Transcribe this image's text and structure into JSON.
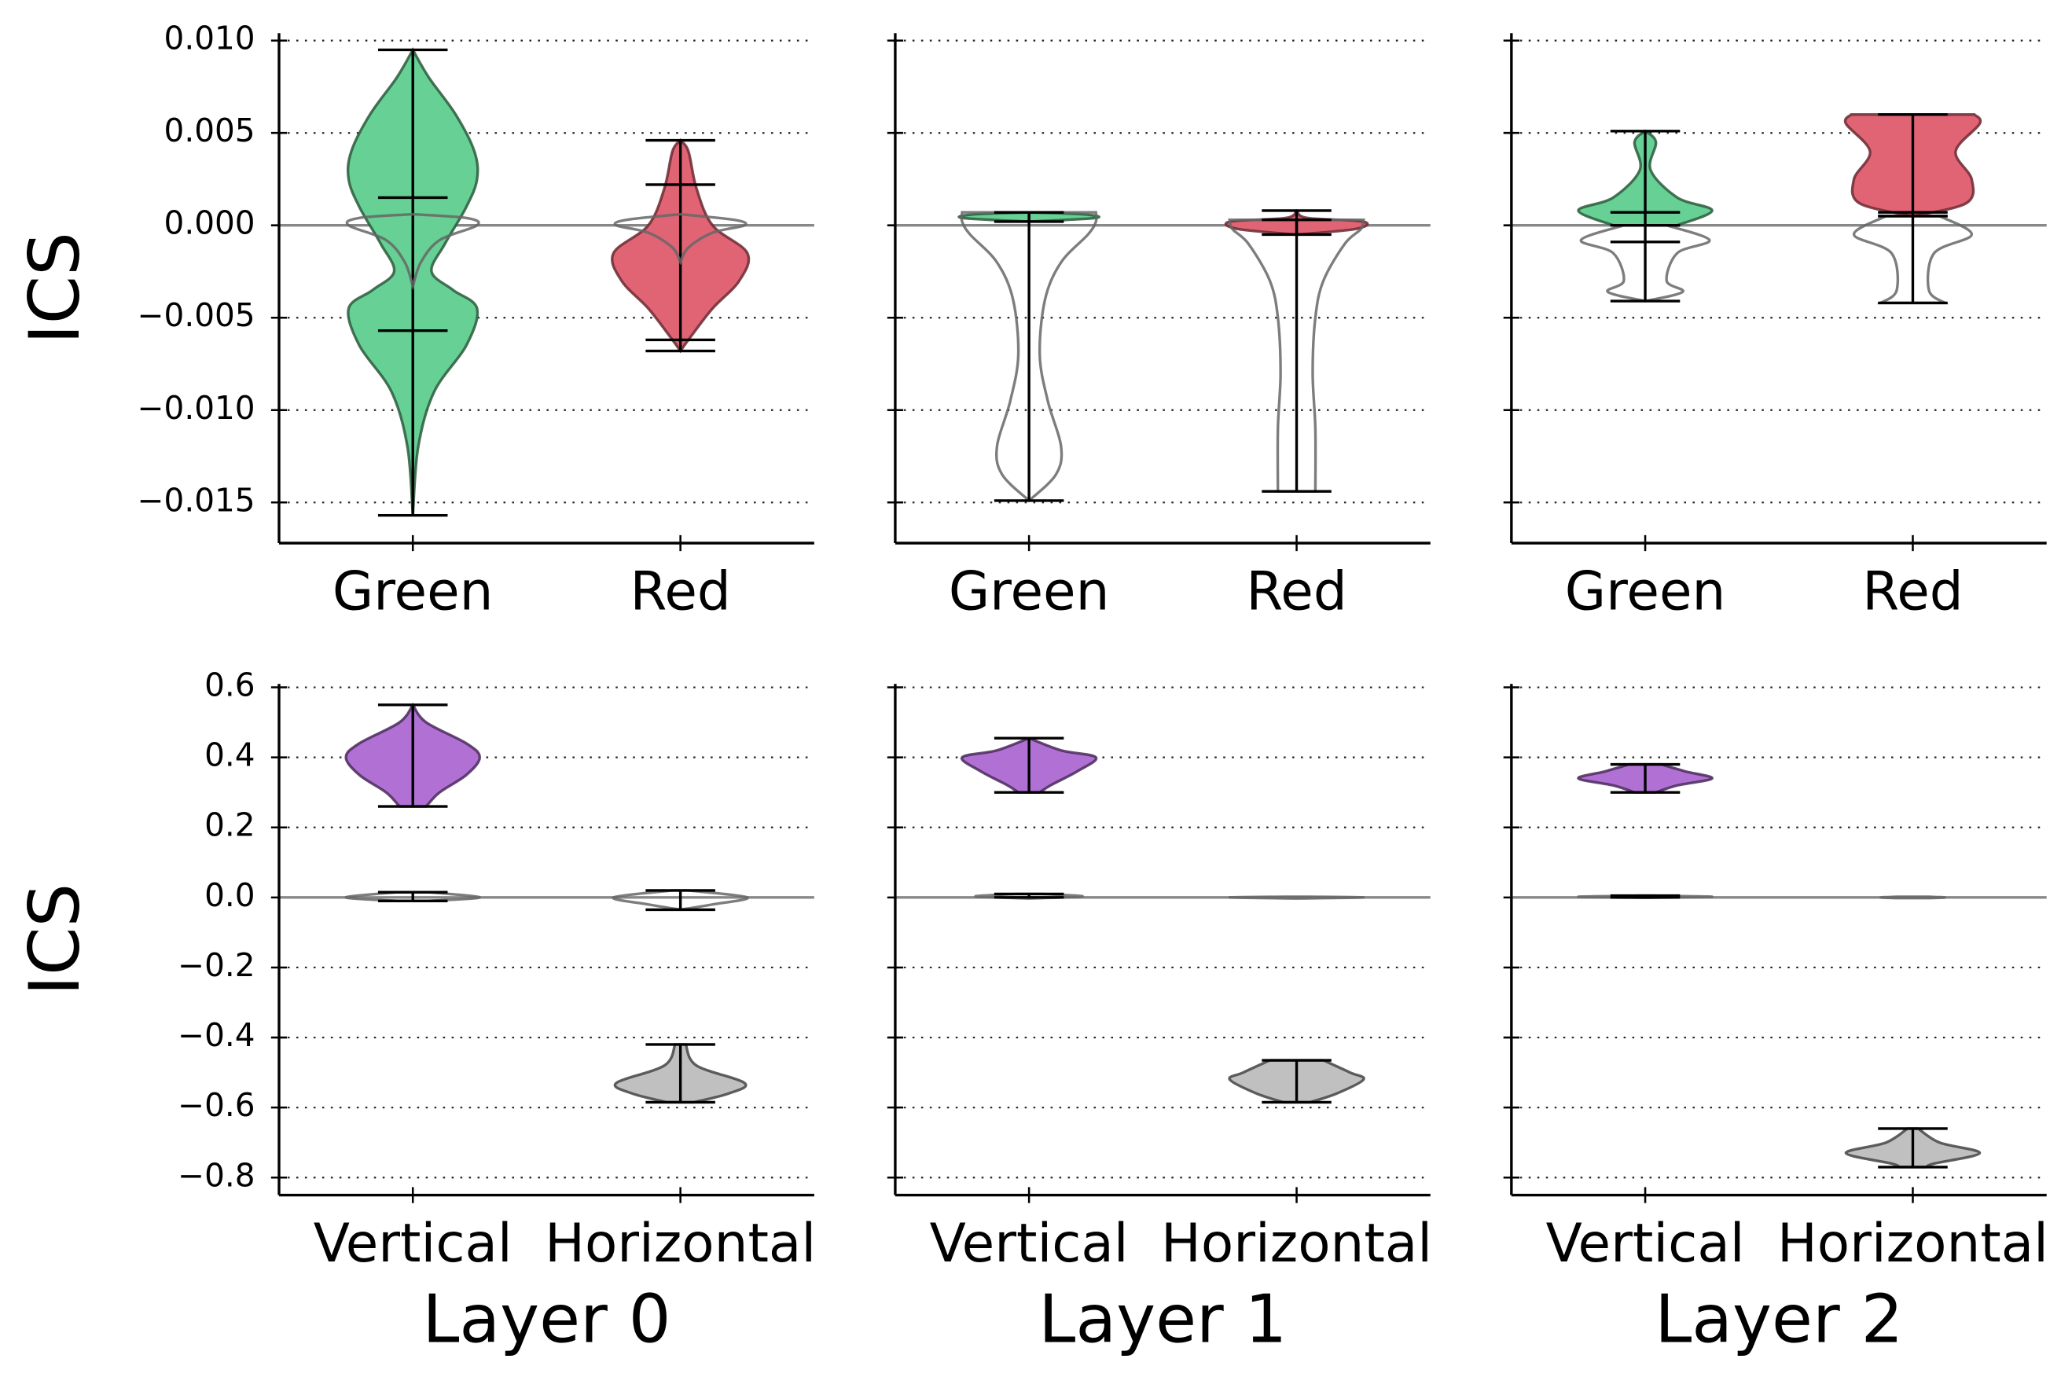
{
  "chart_data": [
    {
      "type": "violin",
      "categories": [
        "Green",
        "Red"
      ],
      "ylabel": "ICS",
      "ylim": [
        -0.0172,
        0.0104
      ],
      "yticks": [
        {
          "value": 0.01,
          "label": "0.010"
        },
        {
          "value": 0.005,
          "label": "0.005"
        },
        {
          "value": 0,
          "label": "0.000"
        },
        {
          "value": -0.005,
          "label": "−0.005"
        },
        {
          "value": -0.01,
          "label": "−0.010"
        },
        {
          "value": -0.015,
          "label": "−0.015"
        }
      ],
      "yticklabels": true,
      "grid": true,
      "reference_line": 0,
      "series": [
        {
          "violins": [
            {
              "color": "#66d095",
              "edgecolor": "#2c5a3c",
              "min": -0.0157,
              "max": 0.0095,
              "quantiles": [
                -0.0057,
                0.0015
              ],
              "kde_y": [
                0.0095,
                0.008,
                0.006,
                0.004,
                0.0025,
                0.001,
                -0.001,
                -0.0025,
                -0.0035,
                -0.0045,
                -0.0065,
                -0.009,
                -0.012,
                -0.0157
              ],
              "kde_w": [
                0,
                0.06,
                0.16,
                0.23,
                0.24,
                0.2,
                0.12,
                0.07,
                0.15,
                0.24,
                0.2,
                0.08,
                0.02,
                0
              ]
            },
            {
              "color": "#e06474",
              "edgecolor": "#6a2a32",
              "min": -0.0068,
              "max": 0.0046,
              "quantiles": [
                -0.0062,
                0.0022
              ],
              "kde_y": [
                0.0046,
                0.004,
                0.002,
                0,
                -0.0015,
                -0.003,
                -0.0045,
                -0.006,
                -0.0068
              ],
              "kde_w": [
                0,
                0.03,
                0.06,
                0.12,
                0.25,
                0.22,
                0.12,
                0.04,
                0
              ]
            }
          ]
        },
        {
          "violins": [
            {
              "color": "none",
              "edgecolor": "#666666",
              "kde_y": [
                0.0006,
                0.0004,
                0,
                -0.0008,
                -0.002,
                -0.0033
              ],
              "kde_w": [
                0,
                0.2,
                0.24,
                0.1,
                0.03,
                0
              ]
            },
            {
              "color": "none",
              "edgecolor": "#666666",
              "kde_y": [
                0.0006,
                0.0003,
                0,
                -0.0004,
                -0.0012,
                -0.002
              ],
              "kde_w": [
                0,
                0.2,
                0.24,
                0.12,
                0.03,
                0
              ]
            }
          ]
        }
      ]
    },
    {
      "type": "violin",
      "categories": [
        "Green",
        "Red"
      ],
      "ylim": [
        -0.0172,
        0.0104
      ],
      "yticks": [
        0.01,
        0.005,
        0,
        -0.005,
        -0.01,
        -0.015
      ],
      "yticklabels": false,
      "grid": true,
      "reference_line": 0,
      "series": [
        {
          "violins": [
            {
              "color": "#66d095",
              "edgecolor": "#2c5a3c",
              "min": 0.0002,
              "max": 0.0007,
              "kde_y": [
                0.0007,
                0.0006,
                0.0004,
                0.0002
              ],
              "kde_w": [
                0,
                0.2,
                0.25,
                0
              ]
            },
            {
              "color": "#e06474",
              "edgecolor": "#6a2a32",
              "min": -0.0005,
              "max": 0.0008,
              "kde_y": [
                0.0008,
                0.0004,
                0.0002,
                -0.0002,
                -0.0005
              ],
              "kde_w": [
                0,
                0.04,
                0.25,
                0.22,
                0
              ]
            }
          ]
        },
        {
          "violins": [
            {
              "color": "none",
              "edgecolor": "#666666",
              "min": -0.0149,
              "max": 0.0007,
              "kde_y": [
                0.0007,
                0.0002,
                -0.0005,
                -0.002,
                -0.004,
                -0.007,
                -0.0095,
                -0.012,
                -0.0135,
                -0.0149
              ],
              "kde_w": [
                0.25,
                0.25,
                0.22,
                0.12,
                0.06,
                0.04,
                0.07,
                0.12,
                0.1,
                0
              ]
            },
            {
              "color": "none",
              "edgecolor": "#666666",
              "min": -0.0144,
              "max": 0.0003,
              "kde_y": [
                0.0003,
                -0.0002,
                -0.001,
                -0.003,
                -0.005,
                -0.008,
                -0.011,
                -0.0144
              ],
              "kde_w": [
                0.25,
                0.24,
                0.18,
                0.1,
                0.07,
                0.06,
                0.07,
                0.07
              ]
            }
          ]
        }
      ]
    },
    {
      "type": "violin",
      "categories": [
        "Green",
        "Red"
      ],
      "ylim": [
        -0.0172,
        0.0104
      ],
      "yticks": [
        0.01,
        0.005,
        0,
        -0.005,
        -0.01,
        -0.015
      ],
      "yticklabels": false,
      "grid": true,
      "reference_line": 0,
      "series": [
        {
          "violins": [
            {
              "color": "#66d095",
              "edgecolor": "#2c5a3c",
              "min": 0,
              "max": 0.0051,
              "quantiles": [
                0.0007
              ],
              "kde_y": [
                0.0051,
                0.0045,
                0.003,
                0.0015,
                0.0008,
                0
              ],
              "kde_w": [
                0,
                0.04,
                0.02,
                0.12,
                0.25,
                0.12
              ]
            },
            {
              "color": "#e06474",
              "edgecolor": "#6a2a32",
              "min": 0.0005,
              "max": 0.006,
              "quantiles": [
                0.0007
              ],
              "kde_y": [
                0.006,
                0.0055,
                0.004,
                0.0025,
                0.0012,
                0.0005
              ],
              "kde_w": [
                0.23,
                0.25,
                0.16,
                0.22,
                0.2,
                0
              ]
            }
          ]
        },
        {
          "violins": [
            {
              "color": "none",
              "edgecolor": "#666666",
              "min": -0.0041,
              "max": 0,
              "quantiles": [
                -0.0009
              ],
              "kde_y": [
                0,
                -0.0008,
                -0.0015,
                -0.003,
                -0.0036,
                -0.0041
              ],
              "kde_w": [
                0.08,
                0.24,
                0.12,
                0.08,
                0.14,
                0
              ]
            },
            {
              "color": "none",
              "edgecolor": "#666666",
              "min": -0.0042,
              "max": 0.0005,
              "kde_y": [
                0.0005,
                -0.0005,
                -0.0015,
                -0.0035,
                -0.0042
              ],
              "kde_w": [
                0.1,
                0.22,
                0.08,
                0.06,
                0.12
              ]
            }
          ]
        }
      ]
    },
    {
      "type": "violin",
      "categories": [
        "Vertical",
        "Horizontal"
      ],
      "ylabel": "ICS",
      "xlabel": "Layer 0",
      "ylim": [
        -0.85,
        0.61
      ],
      "yticks": [
        {
          "value": 0.6,
          "label": "0.6"
        },
        {
          "value": 0.4,
          "label": "0.4"
        },
        {
          "value": 0.2,
          "label": "0.2"
        },
        {
          "value": 0,
          "label": "0.0"
        },
        {
          "value": -0.2,
          "label": "−0.2"
        },
        {
          "value": -0.4,
          "label": "−0.4"
        },
        {
          "value": -0.6,
          "label": "−0.6"
        },
        {
          "value": -0.8,
          "label": "−0.8"
        }
      ],
      "yticklabels": true,
      "grid": true,
      "reference_line": 0,
      "series": [
        {
          "violins": [
            {
              "color": "#b070d4",
              "edgecolor": "#4a2a5a",
              "min": 0.26,
              "max": 0.55,
              "kde_y": [
                0.55,
                0.5,
                0.44,
                0.4,
                0.35,
                0.3,
                0.26
              ],
              "kde_w": [
                0,
                0.05,
                0.2,
                0.25,
                0.2,
                0.1,
                0.05
              ]
            },
            {
              "color": "#c0c0c0",
              "edgecolor": "#444444",
              "min": -0.585,
              "max": -0.42,
              "kde_y": [
                -0.42,
                -0.48,
                -0.53,
                -0.56,
                -0.585
              ],
              "kde_w": [
                0.02,
                0.06,
                0.24,
                0.18,
                0.05
              ]
            }
          ]
        },
        {
          "violins": [
            {
              "color": "none",
              "edgecolor": "#666666",
              "min": -0.01,
              "max": 0.015,
              "kde_y": [
                0.015,
                0,
                -0.01
              ],
              "kde_w": [
                0.06,
                0.25,
                0.05
              ]
            },
            {
              "color": "none",
              "edgecolor": "#666666",
              "min": -0.035,
              "max": 0.02,
              "kde_y": [
                0.02,
                0,
                -0.02,
                -0.035
              ],
              "kde_w": [
                0.03,
                0.25,
                0.12,
                0
              ]
            }
          ]
        }
      ]
    },
    {
      "type": "violin",
      "categories": [
        "Vertical",
        "Horizontal"
      ],
      "xlabel": "Layer 1",
      "ylim": [
        -0.85,
        0.61
      ],
      "yticks": [
        0.6,
        0.4,
        0.2,
        0,
        -0.2,
        -0.4,
        -0.6,
        -0.8
      ],
      "yticklabels": false,
      "grid": true,
      "reference_line": 0,
      "series": [
        {
          "violins": [
            {
              "color": "#b070d4",
              "edgecolor": "#4a2a5a",
              "min": 0.3,
              "max": 0.455,
              "kde_y": [
                0.455,
                0.42,
                0.4,
                0.36,
                0.32,
                0.3
              ],
              "kde_w": [
                0,
                0.12,
                0.25,
                0.18,
                0.08,
                0.04
              ]
            },
            {
              "color": "#c0c0c0",
              "edgecolor": "#444444",
              "min": -0.585,
              "max": -0.465,
              "kde_y": [
                -0.465,
                -0.5,
                -0.52,
                -0.56,
                -0.585
              ],
              "kde_w": [
                0.1,
                0.2,
                0.25,
                0.15,
                0.05
              ]
            }
          ]
        },
        {
          "violins": [
            {
              "color": "none",
              "edgecolor": "#666666",
              "min": 0,
              "max": 0.01,
              "kde_y": [
                0.01,
                0.003,
                -0.003
              ],
              "kde_w": [
                0.05,
                0.2,
                0
              ]
            },
            {
              "color": "none",
              "edgecolor": "#666666",
              "kde_y": [
                0.002,
                0,
                -0.003
              ],
              "kde_w": [
                0.05,
                0.25,
                0
              ]
            }
          ]
        }
      ]
    },
    {
      "type": "violin",
      "categories": [
        "Vertical",
        "Horizontal"
      ],
      "xlabel": "Layer 2",
      "ylim": [
        -0.85,
        0.61
      ],
      "yticks": [
        0.6,
        0.4,
        0.2,
        0,
        -0.2,
        -0.4,
        -0.6,
        -0.8
      ],
      "yticklabels": false,
      "grid": true,
      "reference_line": 0,
      "series": [
        {
          "violins": [
            {
              "color": "#b070d4",
              "edgecolor": "#4a2a5a",
              "min": 0.3,
              "max": 0.38,
              "kde_y": [
                0.38,
                0.36,
                0.34,
                0.32,
                0.3
              ],
              "kde_w": [
                0.06,
                0.15,
                0.25,
                0.12,
                0.04
              ]
            },
            {
              "color": "#c0c0c0",
              "edgecolor": "#444444",
              "min": -0.77,
              "max": -0.66,
              "kde_y": [
                -0.66,
                -0.7,
                -0.73,
                -0.76,
                -0.77
              ],
              "kde_w": [
                0.02,
                0.1,
                0.25,
                0.08,
                0.05
              ]
            }
          ]
        },
        {
          "violins": [
            {
              "color": "none",
              "edgecolor": "#666666",
              "min": 0,
              "max": 0.005,
              "kde_y": [
                0.005,
                0.002,
                -0.001
              ],
              "kde_w": [
                0.03,
                0.25,
                0
              ]
            },
            {
              "color": "none",
              "edgecolor": "#666666",
              "kde_y": [
                0.002,
                0,
                -0.002
              ],
              "kde_w": [
                0.06,
                0.12,
                0.06
              ]
            }
          ]
        }
      ]
    }
  ]
}
